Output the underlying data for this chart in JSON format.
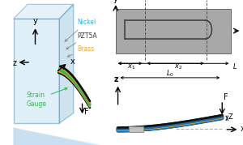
{
  "bg_color": "#ffffff",
  "left_panel": {
    "box_face_color": "#c8e4f5",
    "box_edge_color": "#5599cc",
    "layer_colors": [
      "#111111",
      "#f5a623",
      "#2db84b",
      "#2db84b",
      "#f5a623",
      "#111111"
    ],
    "layer_offsets": [
      -0.022,
      -0.013,
      -0.004,
      0.004,
      0.013,
      0.022
    ],
    "layer_lws": [
      2.0,
      1.8,
      2.2,
      2.2,
      1.8,
      2.0
    ],
    "nickel_color": "#00c0ff",
    "pzt_color": "#333333",
    "brass_color": "#f5a623",
    "sg_color": "#2db84b"
  },
  "top_panel": {
    "rect_facecolor": "#999999",
    "rect_edgecolor": "#555555",
    "sg_color": "#444444",
    "dash_color": "#555555",
    "axis_color": "#111111"
  },
  "bottom_panel": {
    "layer_colors": [
      "#111111",
      "#1a6fa8",
      "#f5a623",
      "#1a6fa8",
      "#111111"
    ],
    "layer_lws": [
      2.0,
      3.5,
      3.0,
      3.5,
      2.0
    ],
    "layer_offsets": [
      -0.018,
      -0.009,
      0.0,
      0.009,
      0.018
    ],
    "dash_color": "#aaaaaa",
    "clamp_facecolor": "#cccccc",
    "clamp_edgecolor": "#888888",
    "axis_color": "#111111"
  },
  "dim_arrow_color": "#111111",
  "dim_fontsize": 6,
  "axis_fontsize": 7
}
